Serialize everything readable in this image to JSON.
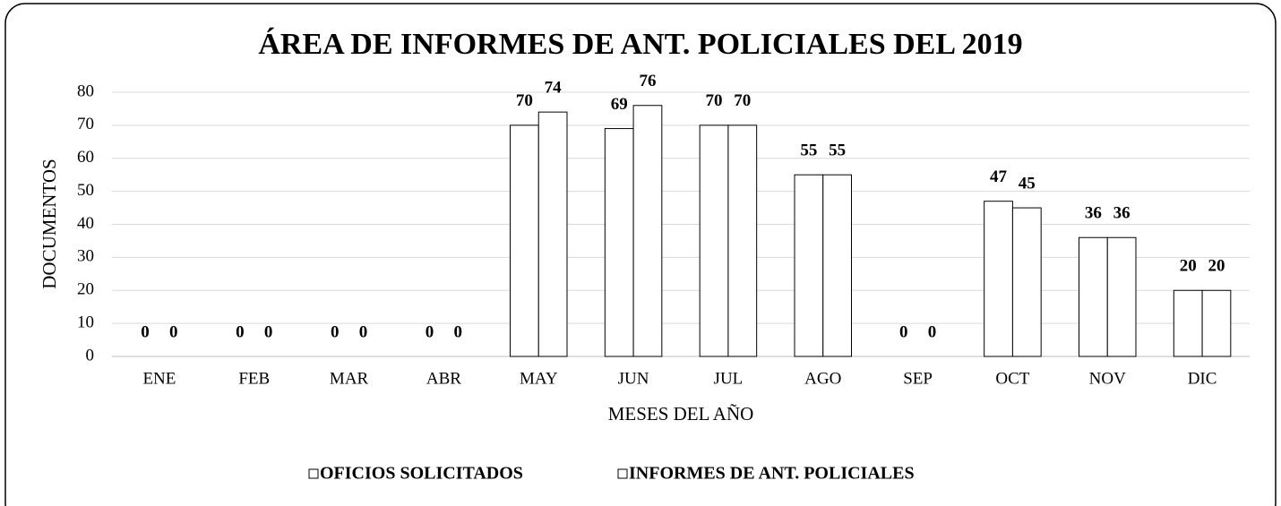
{
  "chart_data": {
    "type": "bar",
    "title": "ÁREA DE INFORMES DE ANT. POLICIALES DEL 2019",
    "x_label": "MESES DEL AÑO",
    "y_label": "DOCUMENTOS",
    "categories": [
      "ENE",
      "FEB",
      "MAR",
      "ABR",
      "MAY",
      "JUN",
      "JUL",
      "AGO",
      "SEP",
      "OCT",
      "NOV",
      "DIC"
    ],
    "series": [
      {
        "name": "OFICIOS SOLICITADOS",
        "color": "#ffffff",
        "values": [
          0,
          0,
          0,
          0,
          70,
          69,
          70,
          55,
          0,
          47,
          36,
          20
        ]
      },
      {
        "name": "INFORMES DE ANT. POLICIALES",
        "color": "#ffffff",
        "values": [
          0,
          0,
          0,
          0,
          74,
          76,
          70,
          55,
          0,
          45,
          36,
          20
        ]
      }
    ],
    "ylim": [
      0,
      80
    ],
    "yticks": [
      0,
      10,
      20,
      30,
      40,
      50,
      60,
      70,
      80
    ],
    "grid": true,
    "legend": "bottom"
  }
}
